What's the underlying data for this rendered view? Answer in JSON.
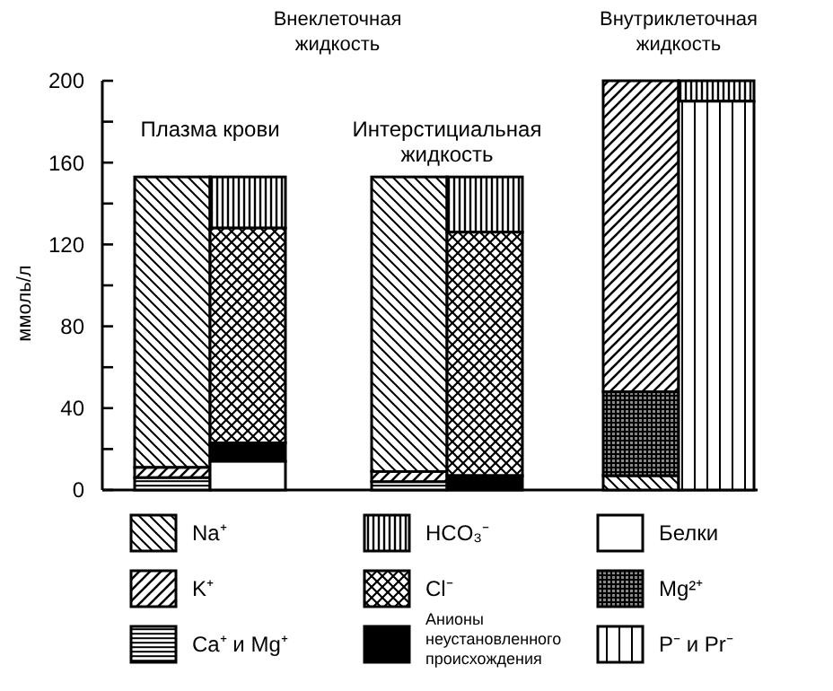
{
  "chart_data": {
    "type": "bar",
    "ylabel": "ммоль/л",
    "categories": [
      null,
      null,
      null,
      null,
      null,
      null
    ],
    "series": [
      {
        "name": "Na⁺",
        "color": "#000000",
        "values": [
          142,
          null,
          144,
          null,
          7,
          null
        ],
        "base": [
          11,
          null,
          9,
          null,
          0,
          null
        ]
      },
      {
        "name": "K⁺",
        "color": "#000000",
        "values": [
          5,
          null,
          5,
          null,
          152,
          null
        ],
        "base": [
          6,
          null,
          4,
          null,
          48,
          null
        ]
      },
      {
        "name": "Ca⁺ и Mg⁺",
        "color": "#000000",
        "values": [
          6,
          null,
          4,
          null,
          null,
          null
        ],
        "base": [
          0,
          null,
          0,
          null,
          null,
          null
        ]
      },
      {
        "name": "HCO₃⁻",
        "color": "#000000",
        "values": [
          null,
          25,
          null,
          27,
          null,
          10
        ],
        "base": [
          null,
          128,
          null,
          126,
          null,
          190
        ]
      },
      {
        "name": "Cl⁻",
        "color": "#000000",
        "values": [
          null,
          105,
          null,
          119,
          null,
          null
        ],
        "base": [
          null,
          23,
          null,
          7,
          null,
          null
        ]
      },
      {
        "name": "Анионы неустановленного происхождения",
        "color": "#000000",
        "values": [
          null,
          9,
          null,
          7,
          null,
          null
        ],
        "base": [
          null,
          14,
          null,
          0,
          null,
          null
        ]
      },
      {
        "name": "Белки",
        "color": "#ffffff",
        "values": [
          null,
          14,
          null,
          null,
          null,
          null
        ],
        "base": [
          null,
          0,
          null,
          null,
          null,
          null
        ]
      },
      {
        "name": "Mg²⁺",
        "color": "#000000",
        "values": [
          null,
          null,
          null,
          null,
          41,
          null
        ],
        "base": [
          null,
          null,
          null,
          null,
          7,
          null
        ]
      },
      {
        "name": "P⁻ и Pr⁻",
        "color": "#000000",
        "values": [
          null,
          null,
          null,
          null,
          null,
          190
        ],
        "base": [
          null,
          null,
          null,
          null,
          null,
          0
        ]
      }
    ],
    "ylim": [
      0,
      200
    ],
    "yticks": [
      0,
      {
        "value": 20,
        "label": null
      },
      40,
      {
        "value": 60,
        "label": null
      },
      80,
      {
        "value": 100,
        "label": null
      },
      120,
      {
        "value": 140,
        "label": null
      },
      160,
      {
        "value": 180,
        "label": null
      },
      200
    ],
    "legend": "bottom",
    "grid": false,
    "annotations": [
      "Внеклеточная жидкость",
      "Плазма крови",
      "Интерстициальная жидкость",
      "Внутриклеточная жидкость"
    ]
  }
}
